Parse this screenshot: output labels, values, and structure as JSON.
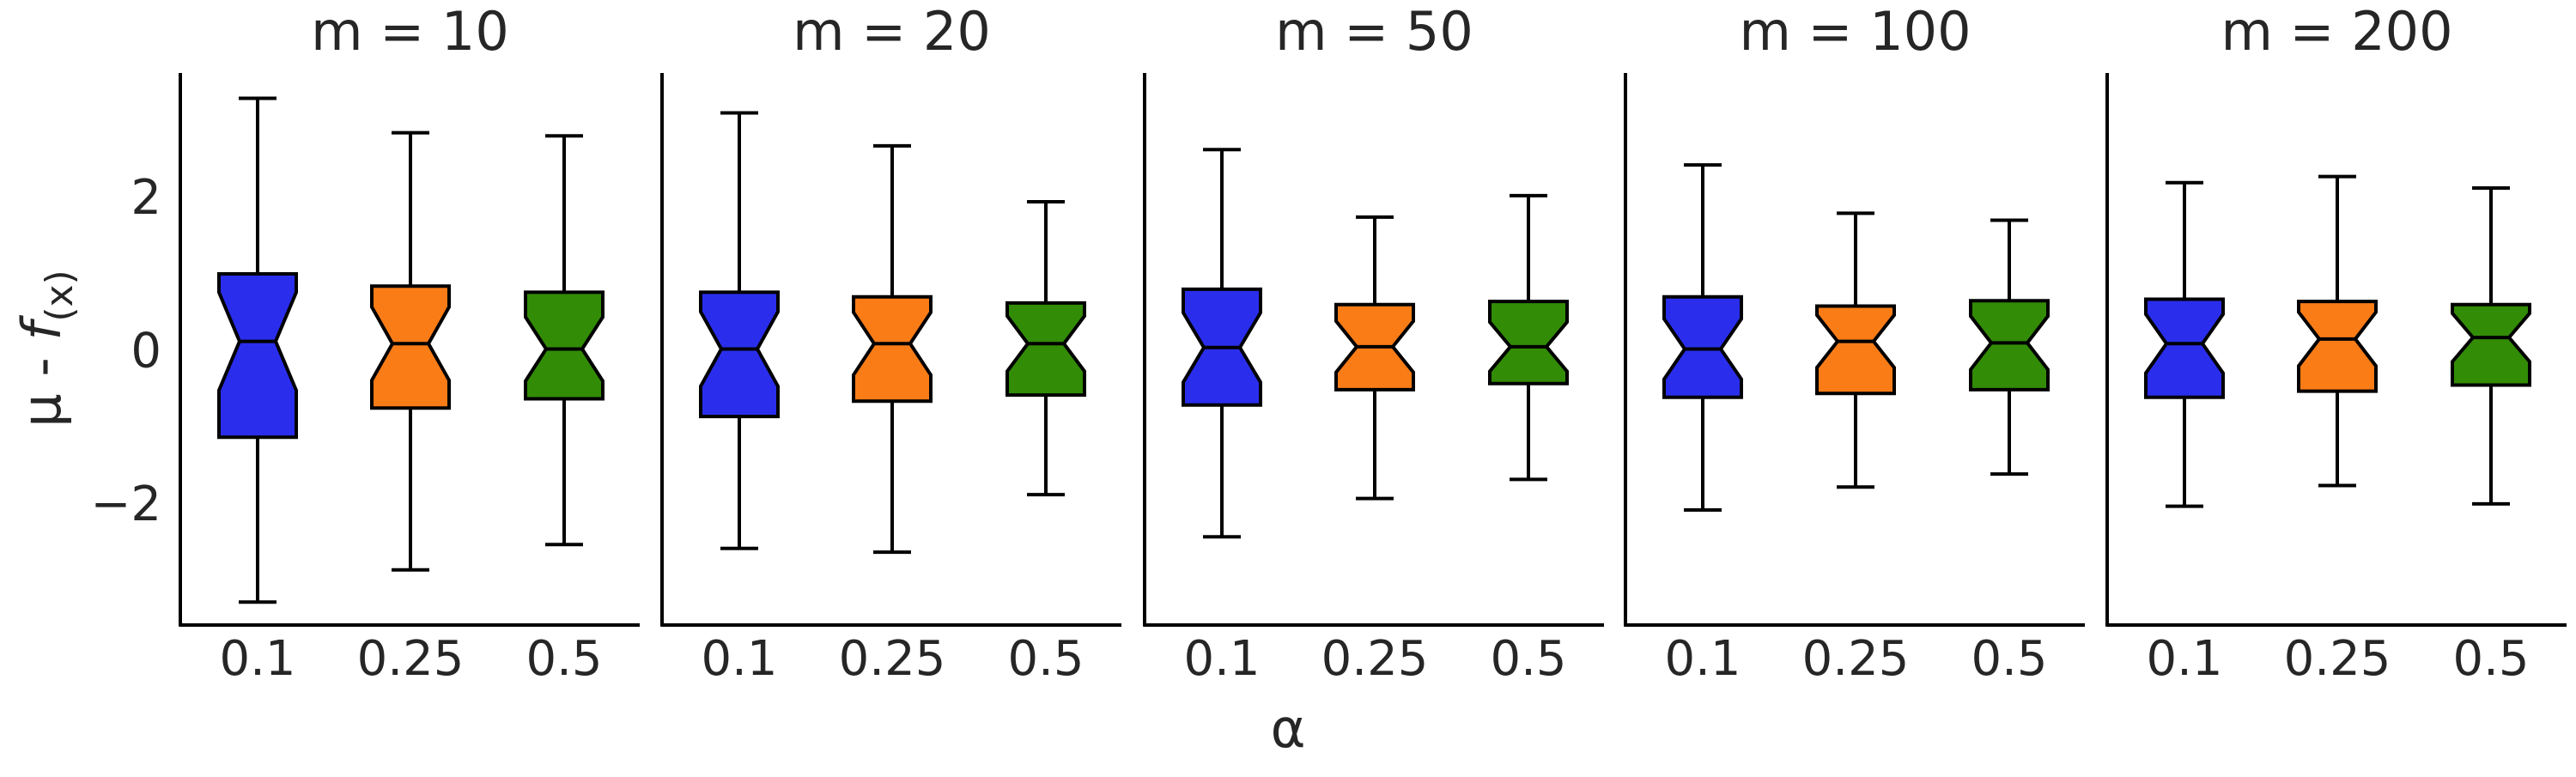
{
  "chart_data": {
    "type": "box",
    "notched": true,
    "shared_y_axis": true,
    "ylabel_prefix": "μ - ",
    "ylabel_func": "f",
    "ylabel_sub": "(x)",
    "xlabel": "α",
    "categories": [
      "0.1",
      "0.25",
      "0.5"
    ],
    "colors": [
      "#2a2eec",
      "#fa7c17",
      "#328c06"
    ],
    "ylim": [
      -3.6,
      3.6
    ],
    "yticks": [
      -2,
      0,
      2
    ],
    "ytick_labels": [
      "−2",
      "0",
      "2"
    ],
    "panels": [
      {
        "title": "m = 10",
        "boxes": [
          {
            "whislo": -3.3,
            "q1": -1.15,
            "med": 0.1,
            "q3": 0.98,
            "whishi": 3.27
          },
          {
            "whislo": -2.88,
            "q1": -0.77,
            "med": 0.07,
            "q3": 0.82,
            "whishi": 2.82
          },
          {
            "whislo": -2.55,
            "q1": -0.65,
            "med": 0.0,
            "q3": 0.74,
            "whishi": 2.78
          }
        ]
      },
      {
        "title": "m = 20",
        "boxes": [
          {
            "whislo": -2.6,
            "q1": -0.88,
            "med": 0.0,
            "q3": 0.74,
            "whishi": 3.08
          },
          {
            "whislo": -2.65,
            "q1": -0.68,
            "med": 0.07,
            "q3": 0.68,
            "whishi": 2.65
          },
          {
            "whislo": -1.9,
            "q1": -0.6,
            "med": 0.07,
            "q3": 0.6,
            "whishi": 1.92
          }
        ]
      },
      {
        "title": "m = 50",
        "boxes": [
          {
            "whislo": -2.45,
            "q1": -0.73,
            "med": 0.02,
            "q3": 0.78,
            "whishi": 2.6
          },
          {
            "whislo": -1.95,
            "q1": -0.53,
            "med": 0.03,
            "q3": 0.58,
            "whishi": 1.72
          },
          {
            "whislo": -1.7,
            "q1": -0.45,
            "med": 0.03,
            "q3": 0.62,
            "whishi": 2.0
          }
        ]
      },
      {
        "title": "m = 100",
        "boxes": [
          {
            "whislo": -2.1,
            "q1": -0.63,
            "med": 0.0,
            "q3": 0.68,
            "whishi": 2.4
          },
          {
            "whislo": -1.8,
            "q1": -0.58,
            "med": 0.1,
            "q3": 0.56,
            "whishi": 1.77
          },
          {
            "whislo": -1.63,
            "q1": -0.53,
            "med": 0.08,
            "q3": 0.63,
            "whishi": 1.68
          }
        ]
      },
      {
        "title": "m = 200",
        "boxes": [
          {
            "whislo": -2.05,
            "q1": -0.63,
            "med": 0.07,
            "q3": 0.65,
            "whishi": 2.17
          },
          {
            "whislo": -1.78,
            "q1": -0.55,
            "med": 0.13,
            "q3": 0.62,
            "whishi": 2.25
          },
          {
            "whislo": -2.02,
            "q1": -0.47,
            "med": 0.15,
            "q3": 0.58,
            "whishi": 2.1
          }
        ]
      }
    ]
  }
}
